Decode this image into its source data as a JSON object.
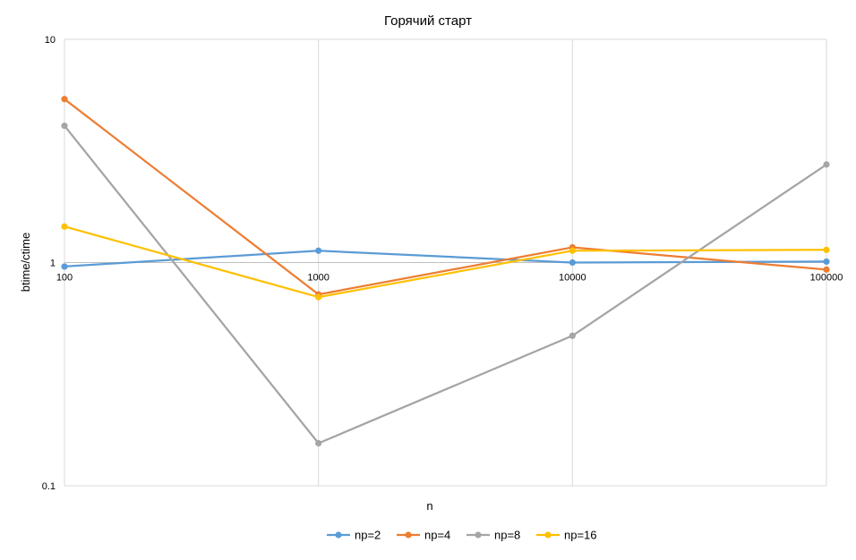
{
  "chart_data": {
    "type": "line",
    "title": "Горячий старт",
    "xlabel": "n",
    "ylabel": "btime/ctime",
    "x_scale": "log",
    "y_scale": "log",
    "categories": [
      "100",
      "1000",
      "10000",
      "100000"
    ],
    "x_values": [
      100,
      1000,
      10000,
      100000
    ],
    "ylim": [
      0.1,
      10
    ],
    "y_ticks": [
      {
        "value": 0.1,
        "label": "0.1"
      },
      {
        "value": 1,
        "label": "1"
      },
      {
        "value": 10,
        "label": "10"
      }
    ],
    "grid": true,
    "legend_position": "bottom",
    "series": [
      {
        "name": "np=2",
        "color": "#5B9BD5",
        "values": [
          0.96,
          1.13,
          1.0,
          1.01
        ]
      },
      {
        "name": "np=4",
        "color": "#ED7D31",
        "values": [
          5.4,
          0.72,
          1.17,
          0.93
        ]
      },
      {
        "name": "np=8",
        "color": "#A5A5A5",
        "values": [
          4.1,
          0.155,
          0.47,
          2.75
        ]
      },
      {
        "name": "np=16",
        "color": "#FFC000",
        "values": [
          1.45,
          0.7,
          1.13,
          1.14
        ]
      }
    ]
  }
}
